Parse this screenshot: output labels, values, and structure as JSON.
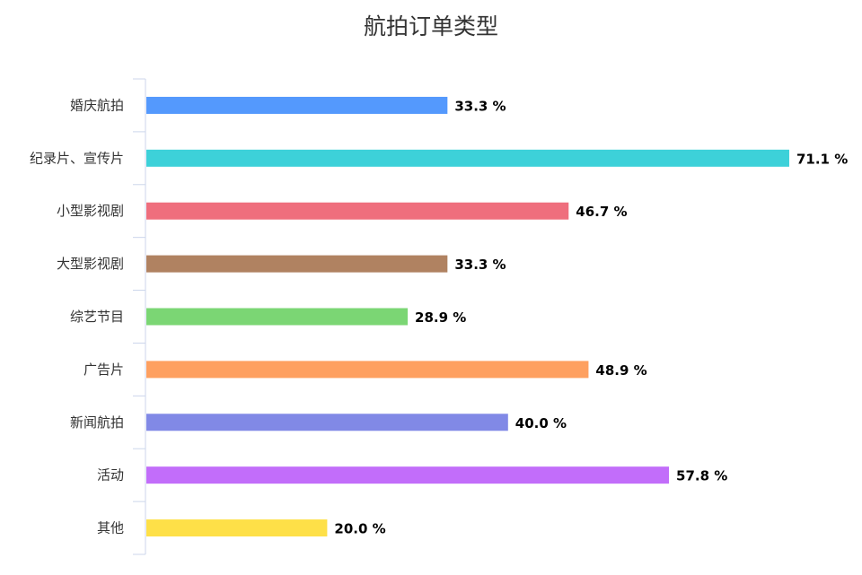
{
  "chart_data": {
    "type": "bar",
    "orientation": "horizontal",
    "title": "航拍订单类型",
    "xlabel": "",
    "ylabel": "",
    "value_suffix": " %",
    "value_decimals": 1,
    "xlim": [
      0,
      75
    ],
    "grid": false,
    "legend": "none",
    "categories": [
      "婚庆航拍",
      "纪录片、宣传片",
      "小型影视剧",
      "大型影视剧",
      "综艺节目",
      "广告片",
      "新闻航拍",
      "活动",
      "其他"
    ],
    "values": [
      33.3,
      71.1,
      46.7,
      33.3,
      28.9,
      48.9,
      40.0,
      57.8,
      20.0
    ],
    "colors": [
      "#5499fd",
      "#3dd1d9",
      "#ef6e7d",
      "#b08261",
      "#7bd674",
      "#fea060",
      "#8189e6",
      "#c26dfa",
      "#fee048"
    ]
  }
}
